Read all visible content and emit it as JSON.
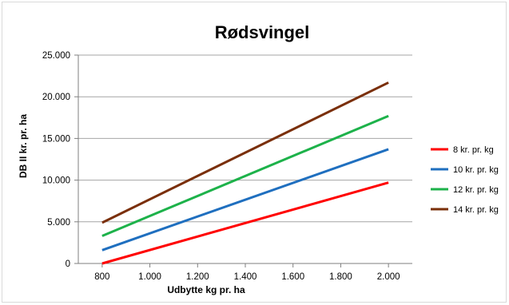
{
  "chart_data": {
    "type": "line",
    "title": "Rødsvingel",
    "xlabel": "Udbytte kg pr.  ha",
    "ylabel": "DB II kr. pr. ha",
    "x": [
      800,
      2000
    ],
    "x_ticks": [
      "800",
      "1.000",
      "1.200",
      "1.400",
      "1.600",
      "1.800",
      "2.000"
    ],
    "x_tick_values": [
      800,
      1000,
      1200,
      1400,
      1600,
      1800,
      2000
    ],
    "y_ticks": [
      "0",
      "5.000",
      "10.000",
      "15.000",
      "20.000",
      "25.000"
    ],
    "y_tick_values": [
      0,
      5000,
      10000,
      15000,
      20000,
      25000
    ],
    "xlim": [
      700,
      2100
    ],
    "ylim": [
      0,
      25000
    ],
    "grid": "horizontal",
    "legend_position": "right",
    "series": [
      {
        "name": "8 kr. pr. kg",
        "color": "#ff0000",
        "values": [
          0,
          9700
        ]
      },
      {
        "name": "10 kr. pr. kg",
        "color": "#1f6fbf",
        "values": [
          1600,
          13700
        ]
      },
      {
        "name": "12 kr. pr. kg",
        "color": "#1db24a",
        "values": [
          3300,
          17700
        ]
      },
      {
        "name": "14 kr. pr. kg",
        "color": "#7a2f0a",
        "values": [
          4900,
          21700
        ]
      }
    ]
  }
}
